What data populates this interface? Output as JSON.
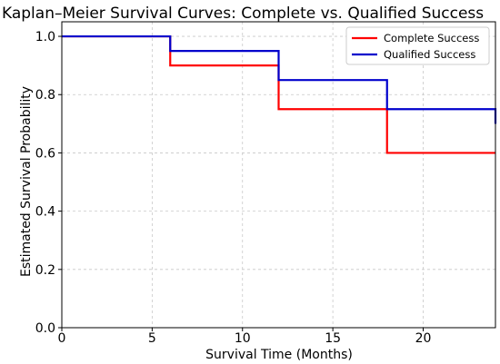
{
  "chart_data": {
    "type": "line",
    "step": true,
    "title": "Kaplan–Meier Survival Curves: Complete vs. Qualified Success",
    "xlabel": "Survival Time (Months)",
    "ylabel": "Estimated Survival Probability",
    "xlim": [
      0,
      24
    ],
    "ylim": [
      0,
      1.05
    ],
    "xticks": [
      0,
      5,
      10,
      15,
      20
    ],
    "xtick_labels": [
      "0",
      "5",
      "10",
      "15",
      "20"
    ],
    "yticks": [
      0.0,
      0.2,
      0.4,
      0.6,
      0.8,
      1.0
    ],
    "ytick_labels": [
      "0.0",
      "0.2",
      "0.4",
      "0.6",
      "0.8",
      "1.0"
    ],
    "grid": true,
    "legend_position": "top-right",
    "series": [
      {
        "name": "Complete Success",
        "color": "#ff0000",
        "x": [
          0,
          6,
          12,
          18,
          24
        ],
        "y": [
          1.0,
          0.9,
          0.75,
          0.6,
          0.6
        ]
      },
      {
        "name": "Qualified Success",
        "color": "#0000cc",
        "x": [
          0,
          6,
          12,
          18,
          24
        ],
        "y": [
          1.0,
          0.95,
          0.85,
          0.75,
          0.7
        ]
      }
    ]
  }
}
